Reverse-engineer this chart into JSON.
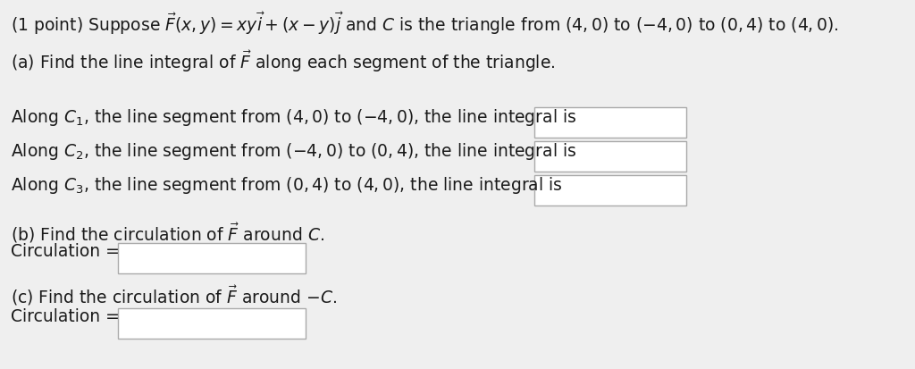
{
  "bg_color": "#efefef",
  "text_color": "#1a1a1a",
  "box_color": "#ffffff",
  "box_edge_color": "#aaaaaa",
  "title_line": "(1 point) Suppose $\\vec{F}(x, y) = xy\\vec{i} + (x - y)\\vec{j}$ and $C$ is the triangle from $(4, 0)$ to $(-4, 0)$ to $(0, 4)$ to $(4, 0)$.",
  "part_a_label": "(a) Find the line integral of $\\vec{F}$ along each segment of the triangle.",
  "c1_text": "Along $C_1$, the line segment from $(4, 0)$ to $(-4, 0)$, the line integral is",
  "c2_text": "Along $C_2$, the line segment from $(-4, 0)$ to $(0, 4)$, the line integral is",
  "c3_text": "Along $C_3$, the line segment from $(0, 4)$ to $(4, 0)$, the line integral is",
  "part_b_label": "(b) Find the circulation of $\\vec{F}$ around $C$.",
  "circ_b_text": "Circulation =",
  "part_c_label": "(c) Find the circulation of $\\vec{F}$ around $-C$.",
  "circ_c_text": "Circulation =",
  "font_size": 13.5
}
